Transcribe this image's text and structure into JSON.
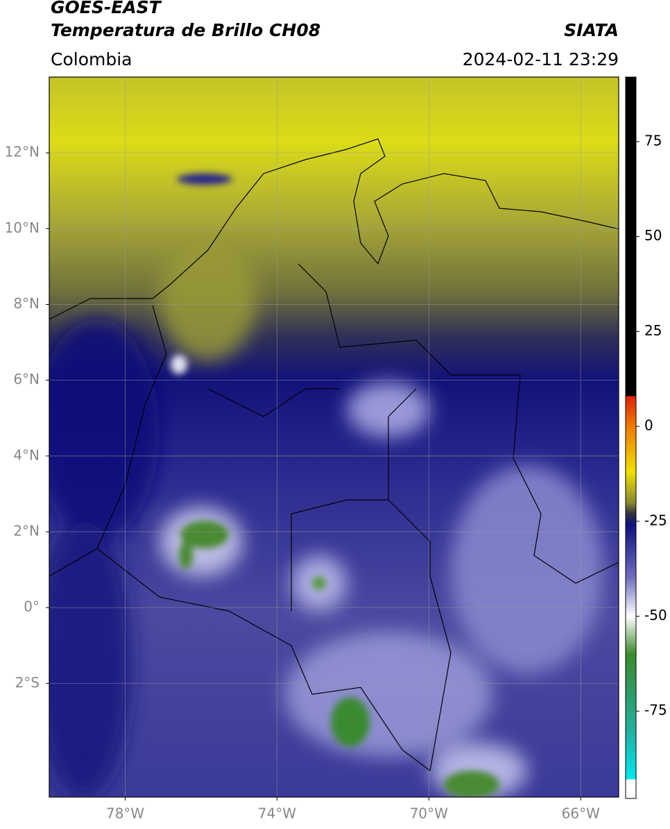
{
  "header": {
    "title": "GOES-EAST",
    "subtitle": "Temperatura de Brillo CH08",
    "region": "Colombia",
    "source": "SIATA",
    "datetime": "2024-02-11 23:29"
  },
  "map": {
    "lonlim": [
      -80,
      -65
    ],
    "latlim": [
      -5,
      14
    ],
    "xticks": [
      {
        "value": -78,
        "label": "78°W"
      },
      {
        "value": -74,
        "label": "74°W"
      },
      {
        "value": -70,
        "label": "70°W"
      },
      {
        "value": -66,
        "label": "66°W"
      }
    ],
    "yticks": [
      {
        "value": -2,
        "label": "2°S"
      },
      {
        "value": 0,
        "label": "0°"
      },
      {
        "value": 2,
        "label": "2°N"
      },
      {
        "value": 4,
        "label": "4°N"
      },
      {
        "value": 6,
        "label": "6°N"
      },
      {
        "value": 8,
        "label": "8°N"
      },
      {
        "value": 10,
        "label": "10°N"
      },
      {
        "value": 12,
        "label": "12°N"
      }
    ],
    "grid": true
  },
  "colorbar": {
    "lim": [
      -98,
      92
    ],
    "ticks": [
      75,
      50,
      25,
      0,
      -25,
      -50,
      -75
    ],
    "colormap": [
      {
        "value": 92,
        "color": "#000000"
      },
      {
        "value": 8,
        "color": "#000000"
      },
      {
        "value": 8,
        "color": "#e0200a"
      },
      {
        "value": 0,
        "color": "#f07a00"
      },
      {
        "value": -12,
        "color": "#f0e000"
      },
      {
        "value": -20,
        "color": "#8a8a30"
      },
      {
        "value": -23,
        "color": "#303040"
      },
      {
        "value": -26,
        "color": "#101080"
      },
      {
        "value": -40,
        "color": "#7070c0"
      },
      {
        "value": -50,
        "color": "#ffffff"
      },
      {
        "value": -60,
        "color": "#3a8a2a"
      },
      {
        "value": -80,
        "color": "#20b0a0"
      },
      {
        "value": -93,
        "color": "#00e8f0"
      },
      {
        "value": -93,
        "color": "#ffffff"
      },
      {
        "value": -98,
        "color": "#ffffff"
      }
    ]
  }
}
